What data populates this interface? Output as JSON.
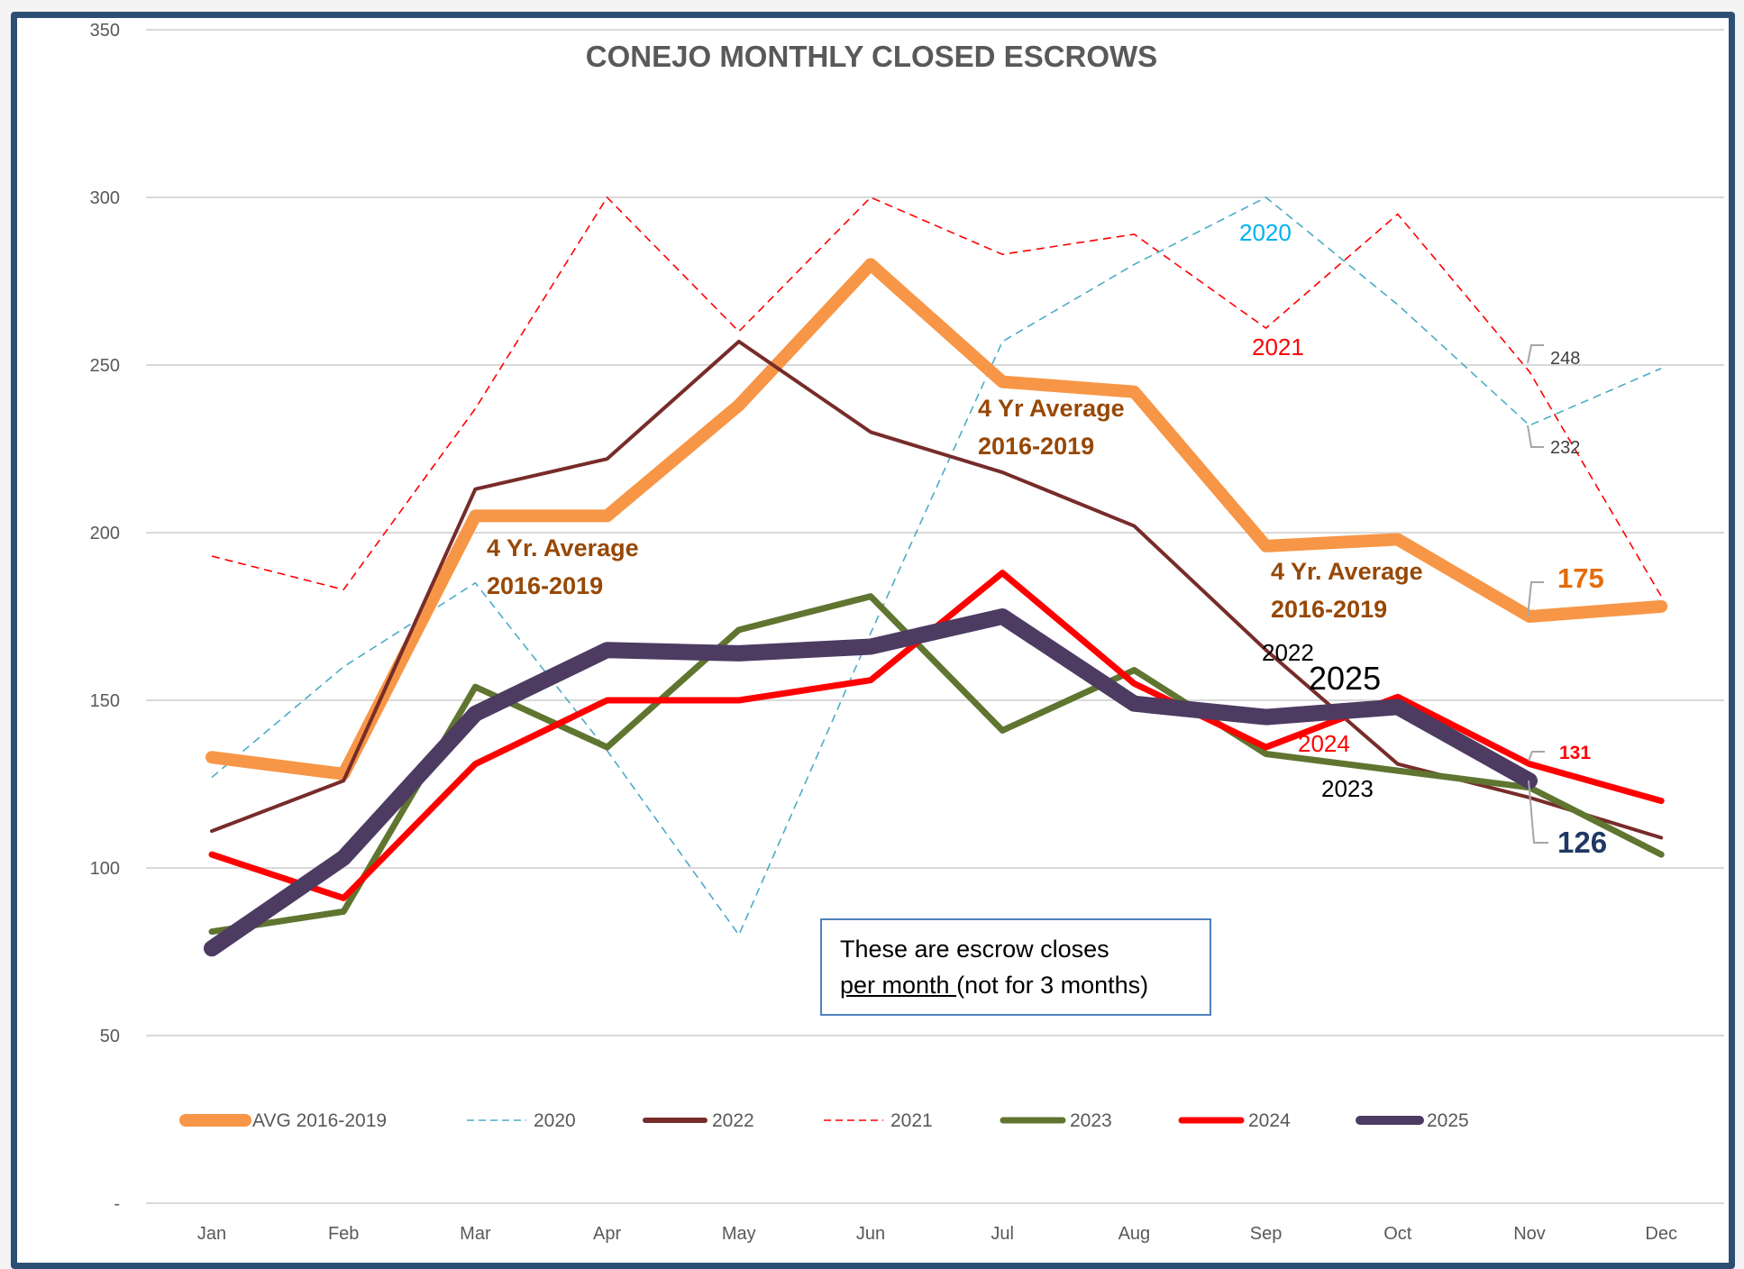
{
  "chart_data": {
    "type": "line",
    "title": "CONEJO MONTHLY CLOSED ESCROWS",
    "xlabel": "",
    "ylabel": "",
    "categories": [
      "Jan",
      "Feb",
      "Mar",
      "Apr",
      "May",
      "Jun",
      "Jul",
      "Aug",
      "Sep",
      "Oct",
      "Nov",
      "Dec"
    ],
    "ylim": [
      0,
      350
    ],
    "yticks": [
      0,
      50,
      100,
      150,
      200,
      250,
      300,
      350
    ],
    "ytick_labels": [
      "-",
      "50",
      "100",
      "150",
      "200",
      "250",
      "300",
      "350"
    ],
    "grid": true,
    "legend_position": "bottom",
    "series": [
      {
        "name": "AVG 2016-2019",
        "color": "#f79646",
        "style": "solid-thick",
        "values": [
          133,
          128,
          205,
          205,
          238,
          280,
          245,
          242,
          196,
          198,
          175,
          178
        ]
      },
      {
        "name": "2020",
        "color": "#4bacc6",
        "style": "dashed",
        "values": [
          127,
          160,
          185,
          135,
          80,
          170,
          257,
          280,
          300,
          268,
          232,
          249
        ]
      },
      {
        "name": "2022",
        "color": "#772c2a",
        "style": "solid",
        "values": [
          111,
          126,
          213,
          222,
          257,
          230,
          218,
          202,
          165,
          131,
          121,
          109
        ]
      },
      {
        "name": "2021",
        "color": "#ff0000",
        "style": "dashed",
        "values": [
          193,
          183,
          237,
          300,
          260,
          300,
          283,
          289,
          261,
          295,
          248,
          181
        ]
      },
      {
        "name": "2023",
        "color": "#5f7530",
        "style": "solid",
        "values": [
          81,
          87,
          154,
          136,
          171,
          181,
          141,
          159,
          134,
          129,
          124,
          104
        ]
      },
      {
        "name": "2024",
        "color": "#ff0000",
        "style": "solid",
        "values": [
          104,
          91,
          131,
          150,
          150,
          156,
          188,
          155,
          136,
          151,
          131,
          120
        ]
      },
      {
        "name": "2025",
        "color": "#4d3b62",
        "style": "solid-thick",
        "values": [
          76,
          103,
          146,
          165,
          164,
          166,
          175,
          149,
          145,
          148,
          126,
          null
        ]
      }
    ],
    "annotations": [
      {
        "text": "4 Yr. Average",
        "text2": "2016-2019",
        "near": "Mar",
        "color": "#974806"
      },
      {
        "text": "4 Yr Average",
        "text2": "2016-2019",
        "near": "Jul",
        "color": "#974806"
      },
      {
        "text": "4 Yr. Average",
        "text2": "2016-2019",
        "near": "Sep",
        "color": "#974806"
      },
      {
        "text": "2020",
        "color": "#00b0f0"
      },
      {
        "text": "2021",
        "color": "#ff0000"
      },
      {
        "text": "2022",
        "color": "#000000"
      },
      {
        "text": "2025",
        "color": "#000000"
      },
      {
        "text": "2024",
        "color": "#ff0000"
      },
      {
        "text": "2023",
        "color": "#000000"
      },
      {
        "text": "248",
        "color": "#404040"
      },
      {
        "text": "232",
        "color": "#404040"
      },
      {
        "text": "175",
        "color": "#e46c0a"
      },
      {
        "text": "131",
        "color": "#ff0000"
      },
      {
        "text": "126",
        "color": "#1f3864"
      }
    ]
  },
  "note": {
    "line1": "These are escrow closes",
    "line2_underlined": "per month ",
    "line2_rest": "(not for 3 months)"
  }
}
